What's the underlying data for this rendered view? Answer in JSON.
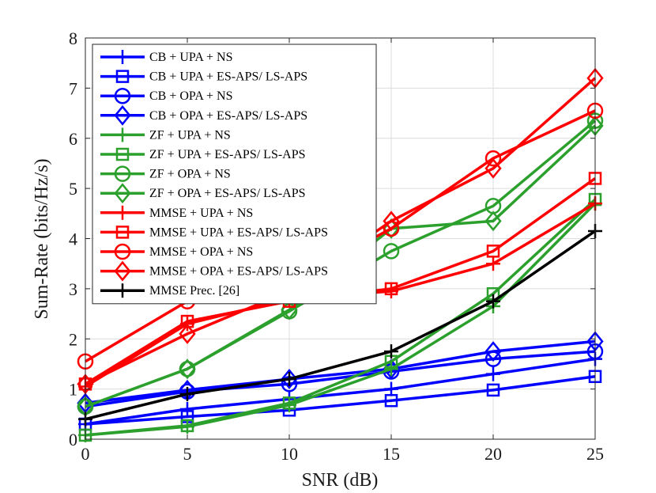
{
  "chart_data": {
    "type": "line",
    "title": "",
    "xlabel": "SNR (dB)",
    "ylabel": "Sum-Rate (bits/Hz/s)",
    "x": [
      0,
      5,
      10,
      15,
      20,
      25
    ],
    "xlim": [
      0,
      25
    ],
    "ylim": [
      0,
      8
    ],
    "xticks": [
      0,
      5,
      10,
      15,
      20,
      25
    ],
    "yticks": [
      0,
      1,
      2,
      3,
      4,
      5,
      6,
      7,
      8
    ],
    "grid": true,
    "legend_position": "top-left",
    "series": [
      {
        "name": "CB + UPA + NS",
        "color": "#0000ff",
        "marker": "plus",
        "values": [
          0.3,
          0.6,
          0.8,
          1.0,
          1.3,
          1.6
        ]
      },
      {
        "name": "CB + UPA + ES-APS/ LS-APS",
        "color": "#0000ff",
        "marker": "square",
        "values": [
          0.3,
          0.45,
          0.58,
          0.77,
          0.98,
          1.25
        ]
      },
      {
        "name": "CB + OPA + NS",
        "color": "#0000ff",
        "marker": "circle",
        "values": [
          0.65,
          0.95,
          1.1,
          1.35,
          1.6,
          1.75
        ]
      },
      {
        "name": "CB + OPA + ES-APS/ LS-APS",
        "color": "#0000ff",
        "marker": "diamond",
        "values": [
          0.72,
          0.98,
          1.2,
          1.4,
          1.75,
          1.95
        ]
      },
      {
        "name": "ZF + UPA + NS",
        "color": "#2ca02c",
        "marker": "plus",
        "values": [
          0.08,
          0.25,
          0.68,
          1.4,
          2.65,
          4.7
        ]
      },
      {
        "name": "ZF + UPA + ES-APS/ LS-APS",
        "color": "#2ca02c",
        "marker": "square",
        "values": [
          0.08,
          0.27,
          0.72,
          1.55,
          2.9,
          4.78
        ]
      },
      {
        "name": "ZF + OPA + NS",
        "color": "#2ca02c",
        "marker": "circle",
        "values": [
          0.65,
          1.4,
          2.55,
          3.75,
          4.65,
          6.35
        ]
      },
      {
        "name": "ZF + OPA + ES-APS/ LS-APS",
        "color": "#2ca02c",
        "marker": "diamond",
        "values": [
          0.65,
          1.4,
          2.58,
          4.2,
          4.35,
          6.25
        ]
      },
      {
        "name": "MMSE + UPA + NS",
        "color": "#ff0000",
        "marker": "plus",
        "values": [
          1.05,
          2.3,
          2.8,
          2.95,
          3.5,
          4.7
        ]
      },
      {
        "name": "MMSE + UPA + ES-APS/ LS-APS",
        "color": "#ff0000",
        "marker": "square",
        "values": [
          1.1,
          2.35,
          2.75,
          3.0,
          3.75,
          5.2
        ]
      },
      {
        "name": "MMSE + OPA + NS",
        "color": "#ff0000",
        "marker": "circle",
        "values": [
          1.55,
          2.75,
          3.1,
          4.2,
          5.6,
          6.55
        ]
      },
      {
        "name": "MMSE + OPA + ES-APS/ LS-APS",
        "color": "#ff0000",
        "marker": "diamond",
        "values": [
          1.1,
          2.1,
          2.95,
          4.35,
          5.4,
          7.2
        ]
      },
      {
        "name": "MMSE Prec. [26]",
        "color": "#000000",
        "marker": "plus",
        "values": [
          0.4,
          0.9,
          1.2,
          1.75,
          2.75,
          4.15
        ]
      }
    ]
  }
}
